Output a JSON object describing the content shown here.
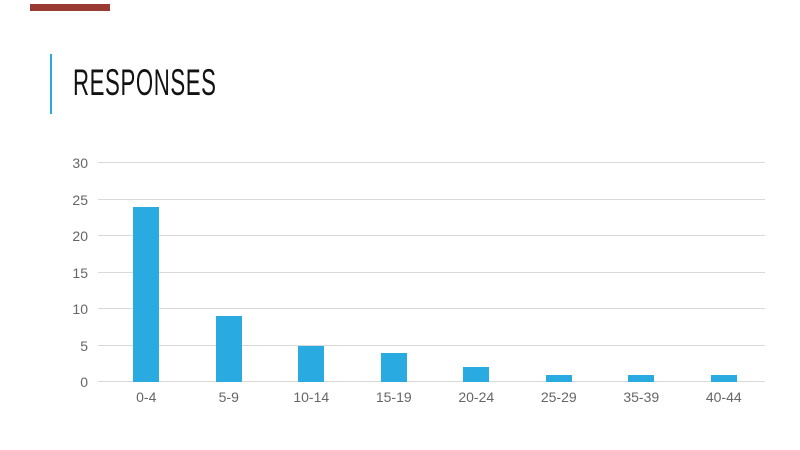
{
  "slide": {
    "title": "RESPONSES",
    "background": "#ffffff",
    "title_color": "#121212",
    "accent_line_color": "#29ABE2",
    "top_tab_color": "#9A3B33"
  },
  "chart_data": {
    "type": "bar",
    "title": "",
    "categories": [
      "0-4",
      "5-9",
      "10-14",
      "15-19",
      "20-24",
      "25-29",
      "35-39",
      "40-44"
    ],
    "values": [
      24,
      9,
      5,
      4,
      2,
      1,
      1,
      1
    ],
    "xlabel": "",
    "ylabel": "",
    "ylim": [
      0,
      30
    ],
    "yticks": [
      0,
      5,
      10,
      15,
      20,
      25,
      30
    ],
    "grid": true,
    "legend": false,
    "bar_color": "#29ABE2",
    "gridline_color": "#D9D9D9",
    "axis_text_color": "#666666"
  }
}
